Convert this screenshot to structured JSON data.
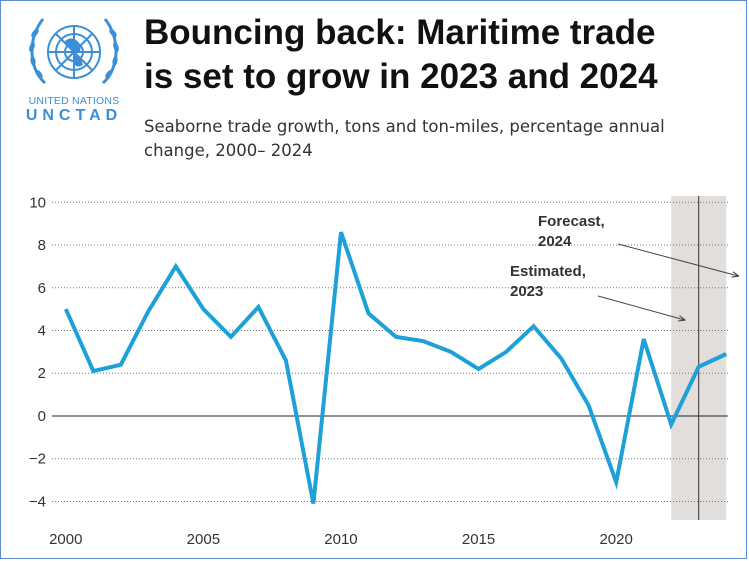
{
  "logo": {
    "icon": "un-emblem-icon",
    "line1": "UNITED NATIONS",
    "line2": "UNCTAD",
    "color": "#3b8fd6"
  },
  "header": {
    "title_line1": "Bouncing back: Maritime trade",
    "title_line2": "is set to grow in 2023 and 2024",
    "subtitle_line1": "Seaborne trade growth, tons and ton-miles, percentage annual",
    "subtitle_line2": "change, 2000– 2024"
  },
  "chart_data": {
    "type": "line",
    "title": "Bouncing back: Maritime trade is set to grow in 2023 and 2024",
    "subtitle": "Seaborne trade growth, tons and ton-miles, percentage annual change, 2000– 2024",
    "x": [
      2000,
      2001,
      2002,
      2003,
      2004,
      2005,
      2006,
      2007,
      2008,
      2009,
      2010,
      2011,
      2012,
      2013,
      2014,
      2015,
      2016,
      2017,
      2018,
      2019,
      2020,
      2021,
      2022,
      2023,
      2024
    ],
    "series": [
      {
        "values": [
          5.0,
          2.1,
          2.4,
          4.9,
          7.0,
          5.0,
          3.7,
          5.1,
          2.6,
          -4.1,
          8.6,
          4.8,
          3.7,
          3.5,
          3.0,
          2.2,
          3.0,
          4.2,
          2.7,
          0.5,
          -3.1,
          3.6,
          -0.4,
          2.3,
          2.9
        ],
        "color": "#1ea0d8"
      }
    ],
    "xlim": [
      1999.5,
      2024.5
    ],
    "ylim": [
      -4.4,
      10.2
    ],
    "x_ticks": [
      2000,
      2005,
      2010,
      2015,
      2020
    ],
    "x_tick_labels": [
      "2000",
      "2005",
      "2010",
      "2015",
      "2020"
    ],
    "y_ticks": [
      10,
      8,
      6,
      4,
      2,
      0,
      -2,
      -4
    ],
    "y_tick_labels": [
      "10",
      "8",
      "6",
      "4",
      "2",
      "0",
      "−2",
      "−4"
    ],
    "grid": "horizontal dotted",
    "shaded_region": {
      "x_from": 2022,
      "x_to": 2024,
      "color": "#e2dedb"
    },
    "marker_line_x": 2023,
    "annotations": [
      {
        "line1": "Forecast,",
        "line2": "2024",
        "points_to": 2024
      },
      {
        "line1": "Estimated,",
        "line2": "2023",
        "points_to": 2023
      }
    ]
  }
}
